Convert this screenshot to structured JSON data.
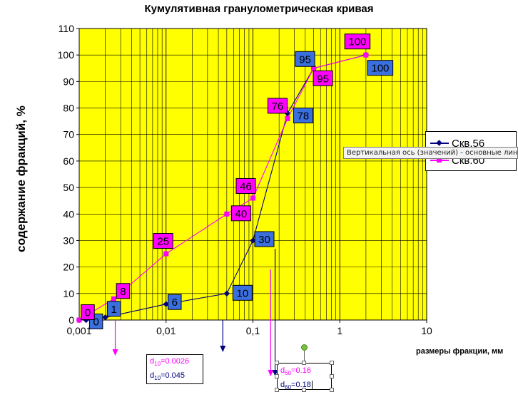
{
  "title": "Кумулятивная гранулометрическая кривая",
  "colors": {
    "plot_bg": "#ffff00",
    "series1": "#000080",
    "series2": "#ff00ff",
    "label_blue": "#3a6fe0",
    "label_magenta": "#ff00ff",
    "grid": "#000000"
  },
  "chart_data": {
    "type": "line",
    "x_scale": "log",
    "xlim": [
      0.001,
      10
    ],
    "ylim": [
      0,
      110
    ],
    "grid": true,
    "legend_position": "right",
    "xlabel": "размеры фракции, мм",
    "ylabel": "содержание фракций, %",
    "x_tick_labels": [
      "0,001",
      "0,01",
      "0,1",
      "1",
      "10"
    ],
    "y_tick_labels": [
      "0",
      "10",
      "20",
      "30",
      "40",
      "50",
      "60",
      "70",
      "80",
      "90",
      "100",
      "110"
    ],
    "series": [
      {
        "name": "Скв.56",
        "color": "#000080",
        "points": [
          {
            "x": 0.0012,
            "y": 0,
            "label": "0"
          },
          {
            "x": 0.002,
            "y": 1,
            "label": "1"
          },
          {
            "x": 0.01,
            "y": 6,
            "label": "6"
          },
          {
            "x": 0.05,
            "y": 10,
            "label": "10"
          },
          {
            "x": 0.1,
            "y": 30,
            "label": "30"
          },
          {
            "x": 0.25,
            "y": 78,
            "label": "78"
          },
          {
            "x": 0.5,
            "y": 95,
            "label": "95"
          },
          {
            "x": 2,
            "y": 100,
            "label": "100"
          }
        ]
      },
      {
        "name": "Скв.60",
        "color": "#ff00ff",
        "points": [
          {
            "x": 0.001,
            "y": 0,
            "label": "0"
          },
          {
            "x": 0.0025,
            "y": 8,
            "label": "8"
          },
          {
            "x": 0.01,
            "y": 25,
            "label": "25"
          },
          {
            "x": 0.05,
            "y": 40,
            "label": "40"
          },
          {
            "x": 0.1,
            "y": 46,
            "label": "46"
          },
          {
            "x": 0.25,
            "y": 76,
            "label": "76"
          },
          {
            "x": 0.5,
            "y": 95,
            "label": "95"
          },
          {
            "x": 2,
            "y": 100,
            "label": "100"
          }
        ]
      }
    ],
    "reference_arrows": [
      {
        "x": 0.0026,
        "color": "#ff00ff"
      },
      {
        "x": 0.045,
        "color": "#000080"
      },
      {
        "x": 0.16,
        "color": "#ff00ff"
      },
      {
        "x": 0.18,
        "color": "#000080"
      }
    ]
  },
  "legend": {
    "items": [
      {
        "label": "Скв.56",
        "color": "#000080"
      },
      {
        "label": "Скв.60",
        "color": "#ff00ff"
      }
    ]
  },
  "tooltip": "Вертикальная ось (значений)  - основные линии сетки",
  "annotation_d10": {
    "line1_prefix": "d",
    "line1_sub": "10",
    "line1_value": "=0.0026",
    "line2_prefix": "d",
    "line2_sub": "10",
    "line2_value": "=0.045"
  },
  "annotation_d60": {
    "line1_prefix": "d",
    "line1_sub": "60",
    "line1_value": "=0.16",
    "line2_prefix": "d",
    "line2_sub": "60",
    "line2_value": "=0.18"
  }
}
